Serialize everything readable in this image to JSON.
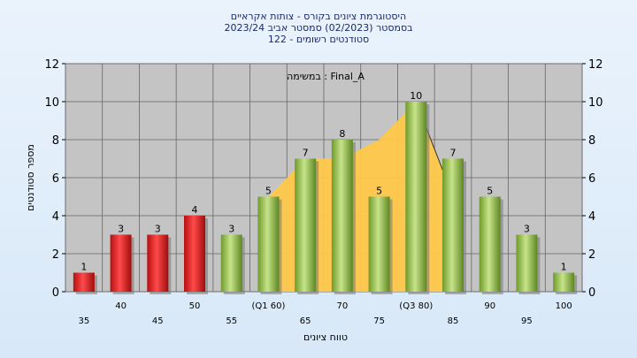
{
  "chart_data": {
    "type": "bar",
    "title": [
      "היסטוגרמת ציונים בקורס - צותות אקראיים",
      "בסמסטר (02/2023) סמסטר אביב 2023/24",
      "סטודנטים רשומים - 122"
    ],
    "annotation": "במשימה : Final_A",
    "xlabel": "טווח ציונים",
    "ylabel": "מספר סטודנטים",
    "ylim": [
      0,
      12
    ],
    "yticks": [
      0,
      2,
      4,
      6,
      8,
      10,
      12
    ],
    "grid": true,
    "categories": [
      "35",
      "40",
      "45",
      "50",
      "55",
      "(Q1 60)",
      "65",
      "70",
      "75",
      "(Q3 80)",
      "85",
      "90",
      "95",
      "100"
    ],
    "values": [
      1,
      3,
      3,
      4,
      3,
      5,
      7,
      8,
      5,
      10,
      7,
      5,
      3,
      1
    ],
    "bar_colors": [
      "red",
      "red",
      "red",
      "red",
      "green",
      "green",
      "green",
      "green",
      "green",
      "green",
      "green",
      "green",
      "green",
      "green"
    ],
    "shaded_area": {
      "description": "interquartile band",
      "x_from": "(Q1 60)",
      "x_to": "(Q3 80)",
      "points": [
        [
          5,
          5
        ],
        [
          6,
          7
        ],
        [
          7,
          7
        ],
        [
          8,
          8
        ],
        [
          9,
          10
        ],
        [
          10,
          5
        ]
      ]
    },
    "colors": {
      "red": "#e02020",
      "green": "#8dbf3c",
      "area": "#ffc84a",
      "plot_bg": "#c4c4c4"
    }
  }
}
